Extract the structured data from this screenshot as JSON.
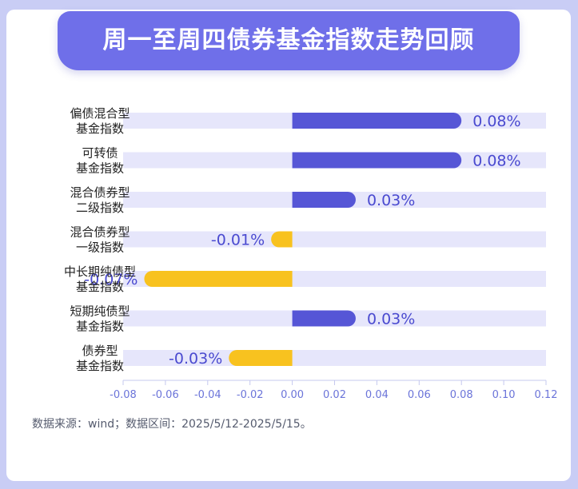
{
  "title": "周一至周四债券基金指数走势回顾",
  "source_note": "数据来源：wind；数据区间：2025/5/12-2025/5/15。",
  "colors": {
    "positive": "#5656d6",
    "negative": "#f8c21f",
    "track": "#e6e6fb",
    "label_positive": "#4a4ad0",
    "label_negative": "#4a4ad0",
    "tick": "#6b74d9",
    "category": "#222222"
  },
  "chart_data": {
    "type": "bar",
    "orientation": "horizontal",
    "categories": [
      [
        "偏债混合型",
        "基金指数"
      ],
      [
        "可转债",
        "基金指数"
      ],
      [
        "混合债券型",
        "二级指数"
      ],
      [
        "混合债券型",
        "一级指数"
      ],
      [
        "中长期纯债型",
        "基金指数"
      ],
      [
        "短期纯债型",
        "基金指数"
      ],
      [
        "债券型",
        "基金指数"
      ]
    ],
    "values": [
      0.08,
      0.08,
      0.03,
      -0.01,
      -0.07,
      0.03,
      -0.03
    ],
    "value_labels": [
      "0.08%",
      "0.08%",
      "0.03%",
      "-0.01%",
      "-0.07%",
      "0.03%",
      "-0.03%"
    ],
    "xlim": [
      -0.08,
      0.12
    ],
    "xticks": [
      -0.08,
      -0.06,
      -0.04,
      -0.02,
      0.0,
      0.02,
      0.04,
      0.06,
      0.08,
      0.1,
      0.12
    ],
    "xtick_labels": [
      "-0.08",
      "-0.06",
      "-0.04",
      "-0.02",
      "0.00",
      "0.02",
      "0.04",
      "0.06",
      "0.08",
      "0.10",
      "0.12"
    ],
    "xlabel": "",
    "ylabel": "",
    "grid": false
  }
}
